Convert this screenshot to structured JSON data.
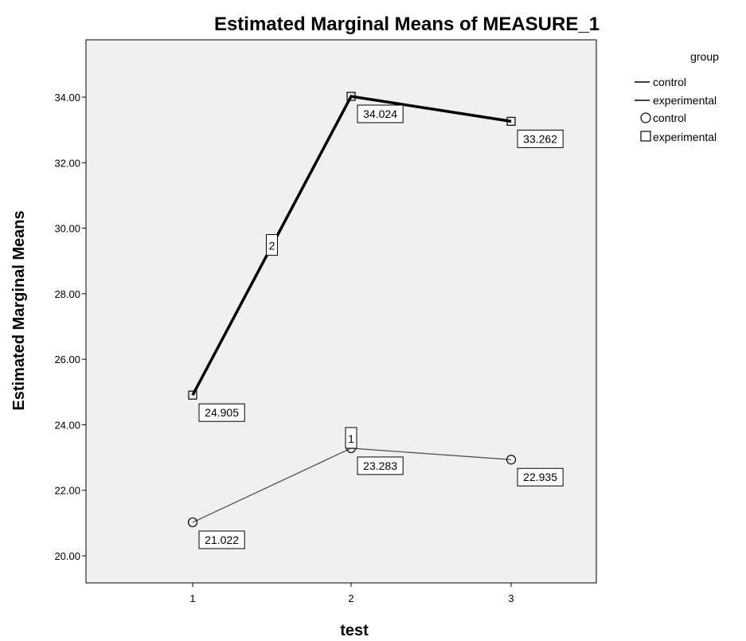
{
  "chart_data": {
    "type": "line",
    "title": "Estimated Marginal Means of MEASURE_1",
    "xlabel": "test",
    "ylabel": "Estimated Marginal Means",
    "categories": [
      "1",
      "2",
      "3"
    ],
    "ylim": [
      19.2,
      35.9
    ],
    "yticks": [
      20,
      22,
      24,
      26,
      28,
      30,
      32,
      34
    ],
    "ytick_labels": [
      "20.00",
      "22.00",
      "24.00",
      "26.00",
      "28.00",
      "30.00",
      "32.00",
      "34.00"
    ],
    "grid": false,
    "series": [
      {
        "name": "control",
        "values": [
          21.022,
          23.283,
          22.935
        ],
        "value_labels": [
          "21.022",
          "23.283",
          "22.935"
        ],
        "marker": "circle",
        "line_weight": "thin",
        "line_id_label": "1",
        "color": "#555555"
      },
      {
        "name": "experimental",
        "values": [
          24.905,
          34.024,
          33.262
        ],
        "value_labels": [
          "24.905",
          "34.024",
          "33.262"
        ],
        "marker": "square",
        "line_weight": "thick",
        "line_id_label": "2",
        "color": "#000000"
      }
    ],
    "legend": {
      "title": "group",
      "placement": "right",
      "line_entries": [
        "control",
        "experimental"
      ],
      "marker_entries": [
        "control",
        "experimental"
      ]
    },
    "plot_background": "#f0f0f0"
  }
}
